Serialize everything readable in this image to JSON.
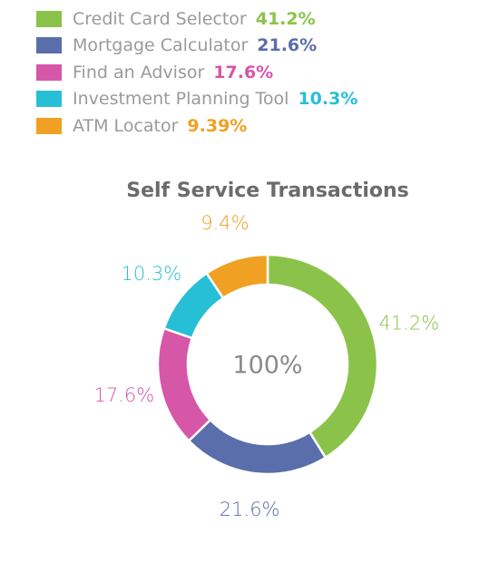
{
  "chart_data": {
    "type": "pie",
    "variant": "donut",
    "title": "Self Service Transactions",
    "center_label": "100%",
    "legend_position": "top-left",
    "categories": [
      "Credit Card Selector",
      "Mortgage Calculator",
      "Find an Advisor",
      "Investment Planning Tool",
      "ATM Locator"
    ],
    "values": [
      41.2,
      21.6,
      17.6,
      10.3,
      9.39
    ],
    "legend_values": [
      "41.2%",
      "21.6%",
      "17.6%",
      "10.3%",
      "9.39%"
    ],
    "slice_labels": [
      "41.2%",
      "21.6%",
      "17.6%",
      "10.3%",
      "9.4%"
    ],
    "colors": [
      "#8bc34a",
      "#5a6eab",
      "#d656a8",
      "#27bfd6",
      "#f0a023"
    ]
  }
}
